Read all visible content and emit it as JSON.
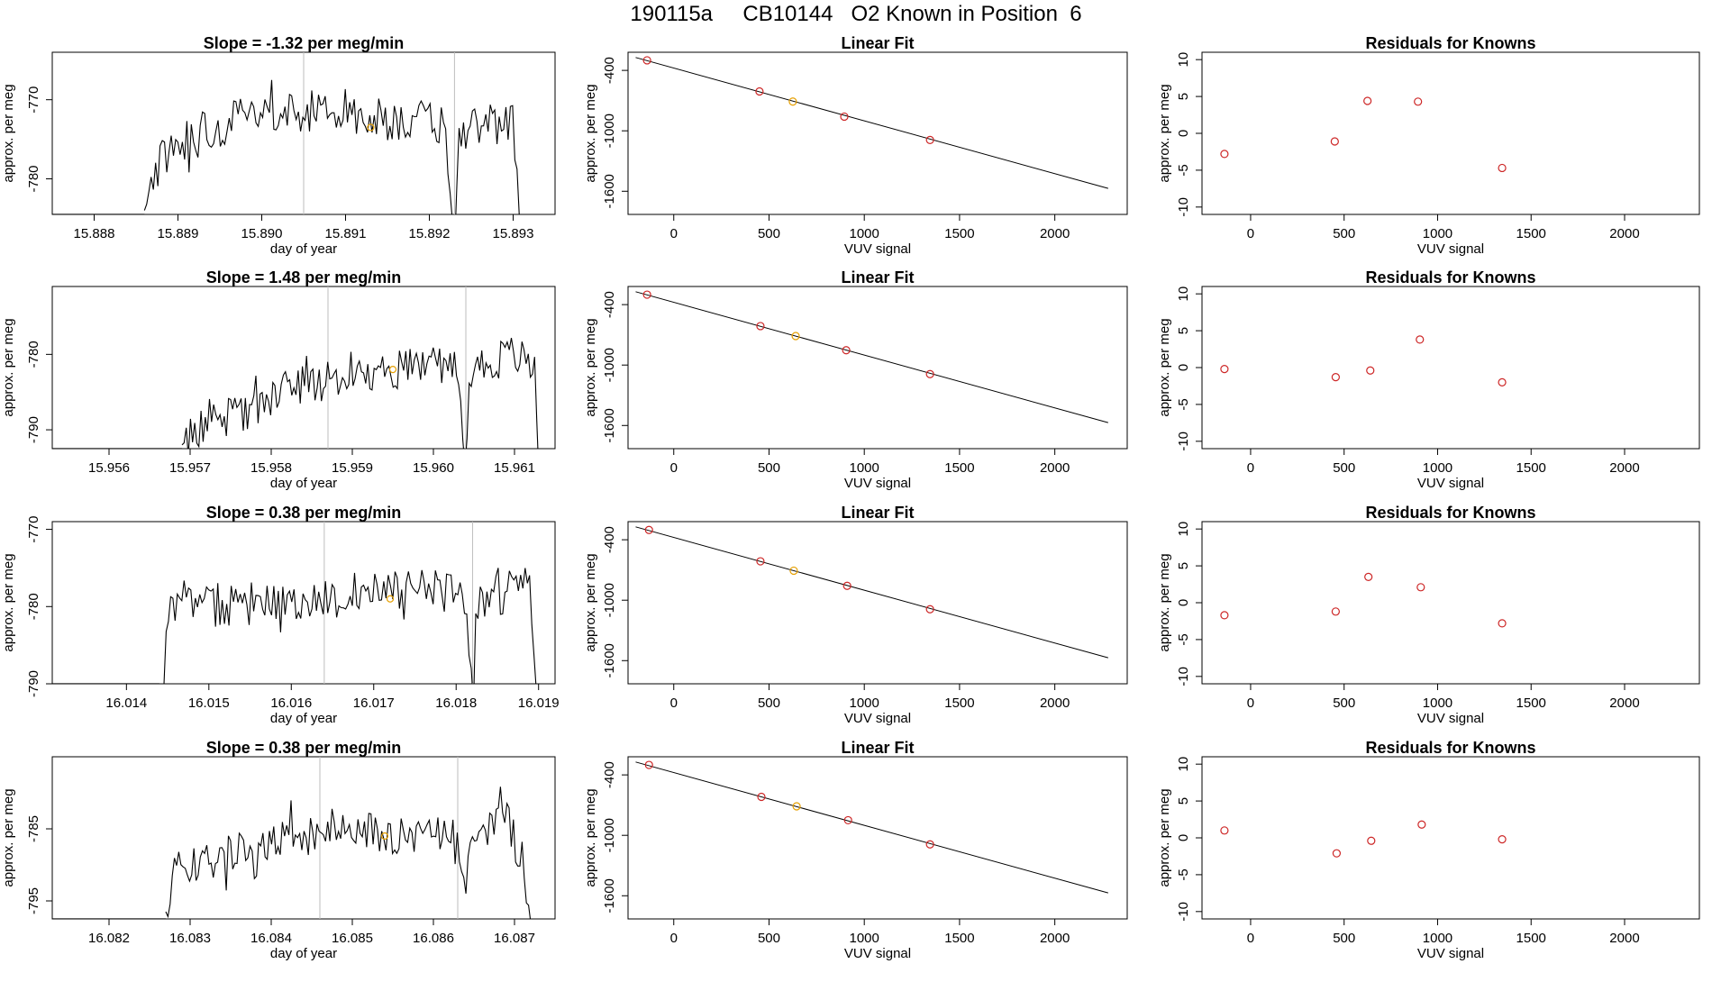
{
  "page_title": "190115a     CB10144   O2 Known in Position  6",
  "colors": {
    "trace": "#000000",
    "marker": "#cd2626",
    "highlight": "#e69f00",
    "vline": "#bebebe",
    "frame": "#000000"
  },
  "chart_data": [
    {
      "type": "line",
      "panel": "timeseries",
      "row": 1,
      "title": "Slope =  -1.32  per meg/min",
      "xlabel": "day of year",
      "ylabel": "approx. per meg",
      "xlim": [
        15.8875,
        15.8935
      ],
      "ylim": [
        -784.5,
        -764
      ],
      "xticks": [
        "15.888",
        "15.889",
        "15.890",
        "15.891",
        "15.892",
        "15.893"
      ],
      "yticks": [
        "-770",
        "-780"
      ],
      "vlines": [
        15.8905,
        15.8923
      ],
      "highlight_point": [
        15.8913,
        -773.5
      ],
      "x_start": 15.8886,
      "x_end": 15.8931,
      "n_points": 170,
      "seed": 11,
      "segments": [
        [
          15.8886,
          -784
        ],
        [
          15.8887,
          -781
        ],
        [
          15.8888,
          -777
        ],
        [
          15.8892,
          -774
        ],
        [
          15.89,
          -772
        ],
        [
          15.8906,
          -771.5
        ],
        [
          15.8915,
          -772.5
        ],
        [
          15.8921,
          -773
        ],
        [
          15.8922,
          -774
        ],
        [
          15.89225,
          -782
        ],
        [
          15.8923,
          -790
        ],
        [
          15.89235,
          -776
        ],
        [
          15.8925,
          -773
        ],
        [
          15.893,
          -773
        ],
        [
          15.89305,
          -780
        ],
        [
          15.8931,
          -790
        ]
      ]
    },
    {
      "type": "scatter",
      "panel": "fit",
      "row": 1,
      "title": "Linear Fit",
      "xlabel": "VUV signal",
      "ylabel": "approx. per meg",
      "xlim": [
        -240,
        2380
      ],
      "ylim": [
        -1830,
        -220
      ],
      "xticks": [
        0,
        500,
        1000,
        1500,
        2000
      ],
      "yticks": [
        -400,
        -1000,
        -1600
      ],
      "x": [
        -140,
        450,
        625,
        895,
        1345
      ],
      "y": [
        -300,
        -609,
        -710,
        -859,
        -1091
      ],
      "highlight_index": 2,
      "fit_line": [
        [
          -200,
          -272
        ],
        [
          2280,
          -1572
        ]
      ]
    },
    {
      "type": "scatter",
      "panel": "residuals",
      "row": 1,
      "title": "Residuals for Knowns",
      "xlabel": "VUV signal",
      "ylabel": "approx. per meg",
      "xlim": [
        -260,
        2400
      ],
      "ylim": [
        -11,
        11
      ],
      "xticks": [
        0,
        500,
        1000,
        1500,
        2000
      ],
      "yticks": [
        10,
        5,
        0,
        -5,
        -10
      ],
      "x": [
        -140,
        450,
        625,
        895,
        1345
      ],
      "y": [
        -2.8,
        -1.1,
        4.4,
        4.3,
        -4.7
      ]
    },
    {
      "type": "line",
      "panel": "timeseries",
      "row": 2,
      "title": "Slope =  1.48  per meg/min",
      "xlabel": "day of year",
      "ylabel": "approx. per meg",
      "xlim": [
        15.9553,
        15.9615
      ],
      "ylim": [
        -792.5,
        -771
      ],
      "xticks": [
        "15.956",
        "15.957",
        "15.958",
        "15.959",
        "15.960",
        "15.961"
      ],
      "yticks": [
        "-780",
        "-790"
      ],
      "vlines": [
        15.9587,
        15.9604
      ],
      "highlight_point": [
        15.9595,
        -782
      ],
      "x_start": 15.9569,
      "x_end": 15.9613,
      "n_points": 170,
      "seed": 23,
      "segments": [
        [
          15.9569,
          -792
        ],
        [
          15.9571,
          -790
        ],
        [
          15.9574,
          -789
        ],
        [
          15.958,
          -785.5
        ],
        [
          15.9586,
          -783.5
        ],
        [
          15.9595,
          -782
        ],
        [
          15.9603,
          -781
        ],
        [
          15.96035,
          -786
        ],
        [
          15.9604,
          -796
        ],
        [
          15.96045,
          -782
        ],
        [
          15.961,
          -780
        ],
        [
          15.96125,
          -782
        ],
        [
          15.9613,
          -796
        ]
      ]
    },
    {
      "type": "scatter",
      "panel": "fit",
      "row": 2,
      "title": "Linear Fit",
      "xlabel": "VUV signal",
      "ylabel": "approx. per meg",
      "xlim": [
        -240,
        2380
      ],
      "ylim": [
        -1830,
        -220
      ],
      "xticks": [
        0,
        500,
        1000,
        1500,
        2000
      ],
      "yticks": [
        -400,
        -1000,
        -1600
      ],
      "x": [
        -140,
        455,
        640,
        905,
        1345
      ],
      "y": [
        -301,
        -613,
        -712,
        -853,
        -1090
      ],
      "highlight_index": 2,
      "fit_line": [
        [
          -200,
          -272
        ],
        [
          2280,
          -1572
        ]
      ]
    },
    {
      "type": "scatter",
      "panel": "residuals",
      "row": 2,
      "title": "Residuals for Knowns",
      "xlabel": "VUV signal",
      "ylabel": "approx. per meg",
      "xlim": [
        -260,
        2400
      ],
      "ylim": [
        -11,
        11
      ],
      "xticks": [
        0,
        500,
        1000,
        1500,
        2000
      ],
      "yticks": [
        10,
        5,
        0,
        -5,
        -10
      ],
      "x": [
        -140,
        455,
        640,
        905,
        1345
      ],
      "y": [
        -0.2,
        -1.3,
        -0.4,
        3.8,
        -2.0
      ]
    },
    {
      "type": "line",
      "panel": "timeseries",
      "row": 3,
      "title": "Slope =  0.38  per meg/min",
      "xlabel": "day of year",
      "ylabel": "approx. per meg",
      "xlim": [
        16.0131,
        16.0192
      ],
      "ylim": [
        -790,
        -769
      ],
      "xticks": [
        "16.014",
        "16.015",
        "16.016",
        "16.017",
        "16.018",
        "16.019"
      ],
      "yticks": [
        "-770",
        "-780",
        "-790"
      ],
      "vlines": [
        16.0164,
        16.0182
      ],
      "highlight_point": [
        16.0172,
        -779
      ],
      "x_start": 16.0144,
      "x_end": 16.019,
      "n_points": 170,
      "seed": 37,
      "segments": [
        [
          16.0144,
          -794
        ],
        [
          16.01445,
          -788
        ],
        [
          16.0145,
          -784
        ],
        [
          16.01455,
          -779
        ],
        [
          16.015,
          -780
        ],
        [
          16.016,
          -779.5
        ],
        [
          16.017,
          -778
        ],
        [
          16.0178,
          -778
        ],
        [
          16.0181,
          -779
        ],
        [
          16.01815,
          -786
        ],
        [
          16.0182,
          -796
        ],
        [
          16.01825,
          -779
        ],
        [
          16.0187,
          -778
        ],
        [
          16.0189,
          -777
        ],
        [
          16.019,
          -796
        ]
      ]
    },
    {
      "type": "scatter",
      "panel": "fit",
      "row": 3,
      "title": "Linear Fit",
      "xlabel": "VUV signal",
      "ylabel": "approx. per meg",
      "xlim": [
        -240,
        2380
      ],
      "ylim": [
        -1830,
        -220
      ],
      "xticks": [
        0,
        500,
        1000,
        1500,
        2000
      ],
      "yticks": [
        -400,
        -1000,
        -1600
      ],
      "x": [
        -130,
        455,
        630,
        910,
        1345
      ],
      "y": [
        -303,
        -614,
        -707,
        -857,
        -1090
      ],
      "highlight_index": 2,
      "fit_line": [
        [
          -200,
          -272
        ],
        [
          2280,
          -1572
        ]
      ]
    },
    {
      "type": "scatter",
      "panel": "residuals",
      "row": 3,
      "title": "Residuals for Knowns",
      "xlabel": "VUV signal",
      "ylabel": "approx. per meg",
      "xlim": [
        -260,
        2400
      ],
      "ylim": [
        -11,
        11
      ],
      "xticks": [
        0,
        500,
        1000,
        1500,
        2000
      ],
      "yticks": [
        10,
        5,
        0,
        -5,
        -10
      ],
      "x": [
        -140,
        455,
        630,
        910,
        1345
      ],
      "y": [
        -1.7,
        -1.2,
        3.5,
        2.1,
        -2.8
      ]
    },
    {
      "type": "line",
      "panel": "timeseries",
      "row": 4,
      "title": "Slope =  0.38  per meg/min",
      "xlabel": "day of year",
      "ylabel": "approx. per meg",
      "xlim": [
        16.0813,
        16.0875
      ],
      "ylim": [
        -797.5,
        -775
      ],
      "xticks": [
        "16.082",
        "16.083",
        "16.084",
        "16.085",
        "16.086",
        "16.087"
      ],
      "yticks": [
        "-785",
        "-795"
      ],
      "vlines": [
        16.0846,
        16.0863
      ],
      "highlight_point": [
        16.0854,
        -786
      ],
      "x_start": 16.0827,
      "x_end": 16.0872,
      "n_points": 170,
      "seed": 51,
      "segments": [
        [
          16.0827,
          -796.5
        ],
        [
          16.08272,
          -798
        ],
        [
          16.0828,
          -788
        ],
        [
          16.083,
          -790
        ],
        [
          16.084,
          -787
        ],
        [
          16.0846,
          -786
        ],
        [
          16.0847,
          -784
        ],
        [
          16.0852,
          -785.5
        ],
        [
          16.086,
          -786
        ],
        [
          16.0863,
          -785
        ],
        [
          16.08635,
          -790
        ],
        [
          16.0864,
          -794
        ],
        [
          16.08645,
          -787
        ],
        [
          16.0868,
          -783
        ],
        [
          16.08685,
          -780
        ],
        [
          16.087,
          -787
        ],
        [
          16.0871,
          -789
        ],
        [
          16.0872,
          -798
        ]
      ]
    },
    {
      "type": "scatter",
      "panel": "fit",
      "row": 4,
      "title": "Linear Fit",
      "xlabel": "VUV signal",
      "ylabel": "approx. per meg",
      "xlim": [
        -240,
        2380
      ],
      "ylim": [
        -1830,
        -220
      ],
      "xticks": [
        0,
        500,
        1000,
        1500,
        2000
      ],
      "yticks": [
        -400,
        -1000,
        -1600
      ],
      "x": [
        -130,
        460,
        645,
        915,
        1345
      ],
      "y": [
        -301,
        -618,
        -712,
        -850,
        -1090
      ],
      "highlight_index": 2,
      "fit_line": [
        [
          -200,
          -272
        ],
        [
          2280,
          -1572
        ]
      ]
    },
    {
      "type": "scatter",
      "panel": "residuals",
      "row": 4,
      "title": "Residuals for Knowns",
      "xlabel": "VUV signal",
      "ylabel": "approx. per meg",
      "xlim": [
        -260,
        2400
      ],
      "ylim": [
        -11,
        11
      ],
      "xticks": [
        0,
        500,
        1000,
        1500,
        2000
      ],
      "yticks": [
        10,
        5,
        0,
        -5,
        -10
      ],
      "x": [
        -140,
        460,
        645,
        915,
        1345
      ],
      "y": [
        1.0,
        -2.1,
        -0.4,
        1.8,
        -0.2
      ]
    }
  ]
}
